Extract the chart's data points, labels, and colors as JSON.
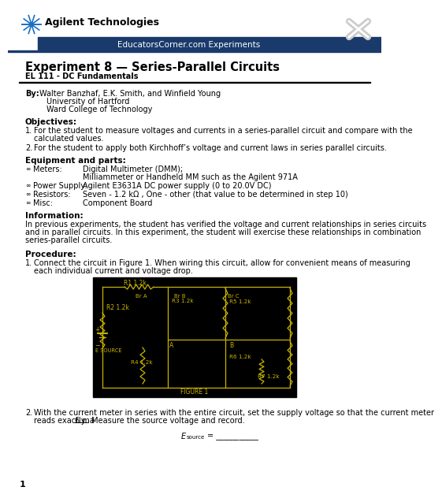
{
  "title": "Experiment 8 — Series-Parallel Circuits",
  "subtitle": "EL 111 - DC Fundamentals",
  "header_text": "EducatorsCorner.com Experiments",
  "company": "Agilent Technologies",
  "by_author": "Walter Banzhaf, E.K. Smith, and Winfield Young",
  "by_line2": "University of Hartford",
  "by_line3": "Ward College of Technology",
  "objectives_title": "Objectives:",
  "obj1a": "For the student to measure voltages and currents in a series-parallel circuit and compare with the",
  "obj1b": "calculated values.",
  "obj2": "For the student to apply both Kirchhoff’s voltage and current laws in series parallel circuits.",
  "equip_title": "Equipment and parts:",
  "equip1_label": "Meters:",
  "equip1_val1": "Digital Multimeter (DMM);",
  "equip1_val2": "Milliammeter or Handheld MM such as the Agilent 971A",
  "equip2_label": "Power Supply:",
  "equip2_val": "Agilent E3631A DC power supply (0 to 20.0V DC)",
  "equip3_label": "Resistors:",
  "equip3_val": "Seven - 1.2 kΩ , One - other (that value to be determined in step 10)",
  "equip4_label": "Misc:",
  "equip4_val": "Component Board",
  "info_title": "Information:",
  "info1": "In previous experiments, the student has verified the voltage and current relationships in series circuits",
  "info2": "and in parallel circuits. In this experiment, the student will exercise these relationships in combination",
  "info3": "series-parallel circuits.",
  "proc_title": "Procedure:",
  "proc1a": "Connect the circuit in Figure 1. When wiring this circuit, allow for convenient means of measuring",
  "proc1b": "each individual current and voltage drop.",
  "proc2a": "With the current meter in series with the entire circuit, set the supply voltage so that the current meter",
  "proc2b1": "reads exactly ",
  "proc2b_ul": "6 ma",
  "proc2b2": ". Measure the source voltage and record.",
  "page_num": "1",
  "header_bg": "#1a3a6b",
  "header_text_color": "#ffffff",
  "circuit_bg": "#000000",
  "circuit_line_color": "#c8b400",
  "circuit_text_color": "#c8b400",
  "body_bg": "#ffffff",
  "lw": 0.8
}
